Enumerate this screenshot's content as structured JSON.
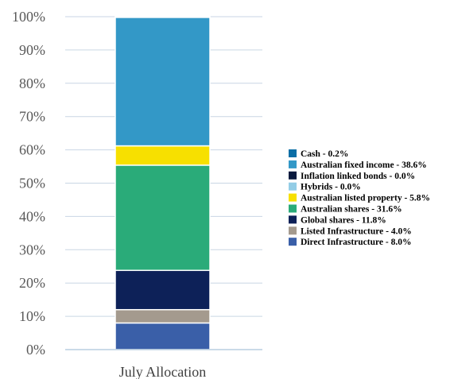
{
  "chart_data": {
    "type": "bar",
    "stacked": true,
    "categories": [
      "July Allocation"
    ],
    "ylim": [
      0,
      100
    ],
    "yticks": [
      0,
      10,
      20,
      30,
      40,
      50,
      60,
      70,
      80,
      90,
      100
    ],
    "ytick_labels": [
      "0%",
      "10%",
      "20%",
      "30%",
      "40%",
      "50%",
      "60%",
      "70%",
      "80%",
      "90%",
      "100%"
    ],
    "grid": true,
    "legend_position": "right",
    "series": [
      {
        "name": "Direct Infrastructure - 8.0%",
        "values": [
          8.0
        ],
        "color": "#3a5fa8"
      },
      {
        "name": "Listed Infrastructure - 4.0%",
        "values": [
          4.0
        ],
        "color": "#a49a8e"
      },
      {
        "name": "Global shares - 11.8%",
        "values": [
          11.8
        ],
        "color": "#0d2158"
      },
      {
        "name": "Australian shares - 31.6%",
        "values": [
          31.6
        ],
        "color": "#2aab79"
      },
      {
        "name": "Australian listed property - 5.8%",
        "values": [
          5.8
        ],
        "color": "#f7e000"
      },
      {
        "name": "Hybrids - 0.0%",
        "values": [
          0.0
        ],
        "color": "#93cde6"
      },
      {
        "name": "Inflation linked bonds - 0.0%",
        "values": [
          0.0
        ],
        "color": "#091a3e"
      },
      {
        "name": "Australian fixed income - 38.6%",
        "values": [
          38.6
        ],
        "color": "#3398c7"
      },
      {
        "name": "Cash - 0.2%",
        "values": [
          0.2
        ],
        "color": "#0b6ea6"
      }
    ],
    "legend_order": [
      "Cash - 0.2%",
      "Australian fixed income - 38.6%",
      "Inflation linked bonds - 0.0%",
      "Hybrids - 0.0%",
      "Australian listed property - 5.8%",
      "Australian shares - 31.6%",
      "Global shares - 11.8%",
      "Listed Infrastructure - 4.0%",
      "Direct Infrastructure - 8.0%"
    ],
    "colors": {
      "grid": "#c9d6e4",
      "axis": "#b9cde0",
      "segment_border": "#ffffff"
    }
  }
}
